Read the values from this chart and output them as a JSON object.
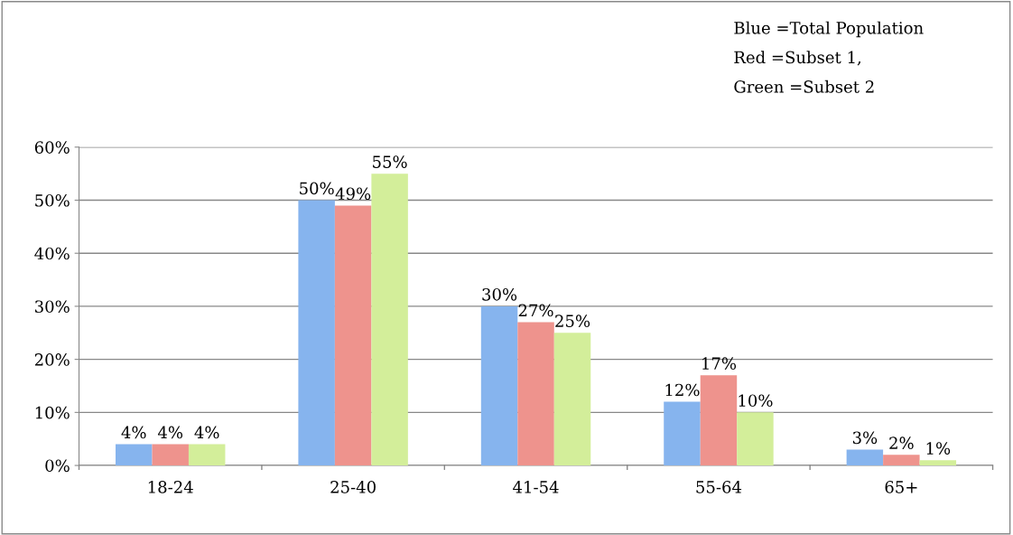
{
  "chart_data": {
    "type": "bar",
    "categories": [
      "18-24",
      "25-40",
      "41-54",
      "55-64",
      "65+"
    ],
    "series": [
      {
        "color": "#86b4ee",
        "values": [
          4,
          50,
          30,
          12,
          3
        ],
        "value_labels": [
          "4%",
          "50%",
          "30%",
          "12%",
          "3%"
        ]
      },
      {
        "color": "#ee938d",
        "values": [
          4,
          49,
          27,
          17,
          2
        ],
        "value_labels": [
          "4%",
          "49%",
          "27%",
          "17%",
          "2%"
        ]
      },
      {
        "color": "#d3ee9a",
        "values": [
          4,
          55,
          25,
          10,
          1
        ],
        "value_labels": [
          "4%",
          "55%",
          "25%",
          "10%",
          "1%"
        ]
      }
    ],
    "ylim": [
      0,
      60
    ],
    "yticks": [
      {
        "value": 0,
        "label": "0%"
      },
      {
        "value": 10,
        "label": "10%"
      },
      {
        "value": 20,
        "label": "20%"
      },
      {
        "value": 30,
        "label": "30%"
      },
      {
        "value": 40,
        "label": "40%"
      },
      {
        "value": 50,
        "label": "50%"
      },
      {
        "value": 60,
        "label": "60%"
      }
    ],
    "grid": "y",
    "annotations": [
      "Blue =Total Population",
      "Red =Subset 1,",
      "Green =Subset 2"
    ]
  }
}
